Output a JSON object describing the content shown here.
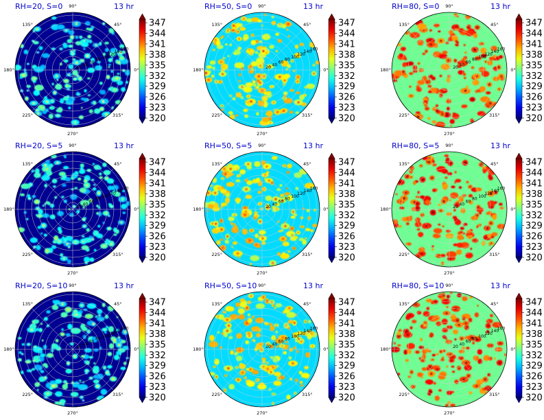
{
  "chart_data": {
    "type": "heatmap",
    "projection": "polar",
    "layout": {
      "rows": 3,
      "columns": 3
    },
    "time_label": "13 hr",
    "colormap": "jet",
    "colorbar": {
      "ticks": [
        347,
        344,
        341,
        338,
        335,
        332,
        329,
        326,
        323,
        320
      ],
      "range": [
        320,
        348
      ],
      "extend": "both"
    },
    "angle_labels": [
      "0°",
      "45°",
      "90°",
      "135°",
      "180°",
      "225°",
      "270°",
      "315°"
    ],
    "radial_tick_labels": [
      "20",
      "40",
      "60",
      "80",
      "100",
      "120",
      "140",
      "160"
    ],
    "panels": [
      {
        "title": "RH=20, S=0",
        "base_value": 320.5,
        "spot_level": 330
      },
      {
        "title": "RH=50, S=0",
        "base_value": 329.5,
        "spot_level": 337
      },
      {
        "title": "RH=80, S=0",
        "base_value": 333.5,
        "spot_level": 342
      },
      {
        "title": "RH=20, S=5",
        "base_value": 320.5,
        "spot_level": 330
      },
      {
        "title": "RH=50, S=5",
        "base_value": 329.5,
        "spot_level": 337
      },
      {
        "title": "RH=80, S=5",
        "base_value": 333.5,
        "spot_level": 342
      },
      {
        "title": "RH=20, S=10",
        "base_value": 320.5,
        "spot_level": 330
      },
      {
        "title": "RH=50, S=10",
        "base_value": 329.5,
        "spot_level": 337
      },
      {
        "title": "RH=80, S=10",
        "base_value": 333.5,
        "spot_level": 342
      }
    ]
  }
}
